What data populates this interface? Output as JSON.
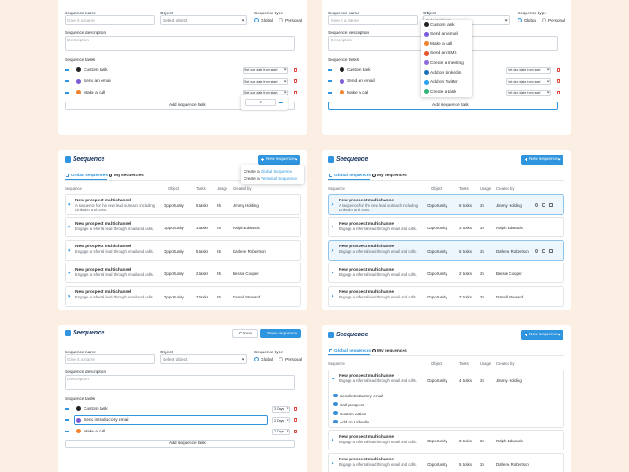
{
  "form_1": {
    "name_label": "Sequence name",
    "name_placeholder": "Give it a name",
    "object_label": "Object",
    "object_placeholder": "Select object",
    "type_label": "Sequence type",
    "type_options": [
      "Global",
      "Personal"
    ],
    "description_label": "Sequence description",
    "description_placeholder": "Description",
    "tasks_label": "Sequence tasks",
    "tasks": [
      {
        "name": "Custom task",
        "due": "Set due date from start"
      },
      {
        "name": "Send an email",
        "due": "Set due date from start"
      },
      {
        "name": "Make a call",
        "due": "Set due date from start"
      }
    ],
    "days_value": 0,
    "add_task": "Add sequence task"
  },
  "form_2": {
    "name_label": "Sequence name",
    "name_placeholder": "Give it a name",
    "object_label": "Object",
    "object_placeholder": "Select object",
    "type_label": "Sequence type",
    "type_options": [
      "Global",
      "Personal"
    ],
    "description_label": "Sequence description",
    "description_placeholder": "Description",
    "tasks_label": "Sequence tasks",
    "tasks": [
      {
        "name": "Custom task",
        "due": "Set due date from start"
      },
      {
        "name": "Send an email",
        "due": "Set due date from start"
      },
      {
        "name": "Make a call",
        "due": "Set due date from start"
      }
    ],
    "task_menu": [
      "Custom task",
      "Send an email",
      "Make a call",
      "Send an SMS",
      "Create a meeting",
      "Add on Linkedin",
      "Add on Twitter",
      "Create a task"
    ],
    "add_task": "Add sequence task"
  },
  "list_1": {
    "logo": "Seequence",
    "new_button": "New sequence",
    "tabs": [
      "Global sequences",
      "My sequences"
    ],
    "create_menu": [
      {
        "prefix": "Create a",
        "emphasis": "Global Sequence"
      },
      {
        "prefix": "Create a",
        "emphasis": "Personal Sequence"
      }
    ],
    "columns": [
      "Sequence",
      "Object",
      "Tasks",
      "Usage",
      "Created by"
    ],
    "rows": [
      {
        "title": "New prospect multichannel",
        "description": "A sequence for the new lead outreach including LinkedIn and SMS.",
        "object": "Opportunity",
        "tasks": "6 tasks",
        "usage": 25,
        "created_by": "Jimmy Holding"
      },
      {
        "title": "New prospect multichannel",
        "description": "Engage a referral lead through email and calls.",
        "object": "Opportunity",
        "tasks": "3 tasks",
        "usage": 25,
        "created_by": "Ralph Edwards"
      },
      {
        "title": "New prospect multichannel",
        "description": "Engage a referral lead through email and calls.",
        "object": "Opportunity",
        "tasks": "5 tasks",
        "usage": 25,
        "created_by": "Darlene Robertson"
      },
      {
        "title": "New prospect multichannel",
        "description": "Engage a referral lead through email and calls.",
        "object": "Opportunity",
        "tasks": "2 tasks",
        "usage": 25,
        "created_by": "Bessie Cooper"
      },
      {
        "title": "New prospect multichannel",
        "description": "Engage a referral lead through email and calls.",
        "object": "Opportunity",
        "tasks": "7 tasks",
        "usage": 25,
        "created_by": "Darrell Steward"
      }
    ]
  },
  "list_2": {
    "logo": "Seequence",
    "new_button": "New sequence",
    "tabs": [
      "Global sequences",
      "My sequences"
    ],
    "columns": [
      "Sequence",
      "Object",
      "Tasks",
      "Usage",
      "Created by"
    ],
    "rows": [
      {
        "title": "New prospect multichannel",
        "description": "A sequence for the new lead outreach including LinkedIn and SMS.",
        "object": "Opportunity",
        "tasks": "6 tasks",
        "usage": 25,
        "created_by": "Jimmy Holding"
      },
      {
        "title": "New prospect multichannel",
        "description": "Engage a referral lead through email and calls.",
        "object": "Opportunity",
        "tasks": "3 tasks",
        "usage": 25,
        "created_by": "Ralph Edwards"
      },
      {
        "title": "New prospect multichannel",
        "description": "Engage a referral lead through email and calls.",
        "object": "Opportunity",
        "tasks": "5 tasks",
        "usage": 25,
        "created_by": "Darlene Robertson"
      },
      {
        "title": "New prospect multichannel",
        "description": "Engage a referral lead through email and calls.",
        "object": "Opportunity",
        "tasks": "2 tasks",
        "usage": 25,
        "created_by": "Bessie Cooper"
      },
      {
        "title": "New prospect multichannel",
        "description": "Engage a referral lead through email and calls.",
        "object": "Opportunity",
        "tasks": "7 tasks",
        "usage": 25,
        "created_by": "Darrell Steward"
      }
    ]
  },
  "form_3": {
    "logo": "Seequence",
    "cancel": "Cancel",
    "save": "Save sequence",
    "name_label": "Sequence name",
    "name_placeholder": "Give it a name",
    "object_label": "Object",
    "object_placeholder": "Select object",
    "type_label": "Sequence type",
    "type_options": [
      "Global",
      "Personal"
    ],
    "description_label": "Sequence description",
    "description_placeholder": "Description",
    "tasks_label": "Sequence tasks",
    "tasks": [
      {
        "name": "Custom task",
        "due": "3 Days"
      },
      {
        "name": "Send introductory email",
        "due": "3 Days"
      },
      {
        "name": "Make a call",
        "due": "7 Days"
      }
    ],
    "add_task": "Add sequence task"
  },
  "list_3": {
    "logo": "Seequence",
    "new_button": "New sequence",
    "tabs": [
      "Global sequences",
      "My sequences"
    ],
    "columns": [
      "Sequence",
      "Object",
      "Tasks",
      "Usage",
      "Created by"
    ],
    "rows": [
      {
        "title": "New prospect multichannel",
        "description": "Engage a referral lead through email and calls.",
        "object": "Opportunity",
        "tasks": "4 tasks",
        "usage": 25,
        "created_by": "Jimmy Holding",
        "subtasks": [
          "Send introductory email",
          "Call prospect",
          "Custom action",
          "Add on Linkedin"
        ]
      },
      {
        "title": "New prospect multichannel",
        "description": "Engage a referral lead through email and calls.",
        "object": "Opportunity",
        "tasks": "3 tasks",
        "usage": 25,
        "created_by": "Ralph Edwards"
      },
      {
        "title": "New prospect multichannel",
        "description": "Engage a referral lead through email and calls.",
        "object": "Opportunity",
        "tasks": "5 tasks",
        "usage": 25,
        "created_by": "Darlene Robertson"
      }
    ]
  }
}
